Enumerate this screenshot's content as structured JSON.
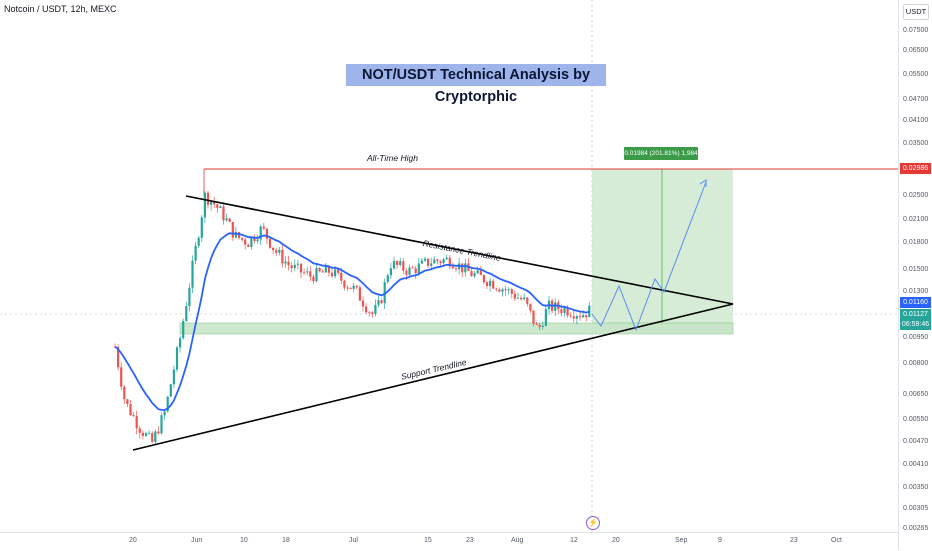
{
  "header": {
    "symbol_line": "Notcoin / USDT, 12h, MEXC",
    "title": "NOT/USDT Technical Analysis by Cryptorphic"
  },
  "price_axis": {
    "currency": "USDT",
    "ticks": [
      "0.07500",
      "0.06500",
      "0.05500",
      "0.04700",
      "0.04100",
      "0.03500",
      "0.02500",
      "0.02100",
      "0.01800",
      "0.01500",
      "0.01300",
      "0.00950",
      "0.00800",
      "0.00650",
      "0.00550",
      "0.00470",
      "0.00410",
      "0.00350",
      "0.00305",
      "0.00265"
    ],
    "tags": {
      "ath": "0.02986",
      "level1": "0.01160",
      "level2": "0.01127",
      "countdown": "06:59:46"
    }
  },
  "time_axis": {
    "ticks": [
      "20",
      "Jun",
      "10",
      "18",
      "Jul",
      "15",
      "23",
      "Aug",
      "12",
      "20",
      "Sep",
      "9",
      "23",
      "Oct"
    ]
  },
  "annotations": {
    "ath_label": "All-Time High",
    "resistance_label": "Resistance Trendline",
    "support_label": "Support Trendline",
    "target_label": "0.01984 (201.81%) 1,984"
  },
  "colors": {
    "up": "#26a69a",
    "down": "#ef5350",
    "ema": "#2962ff",
    "ath_line": "#e53935",
    "target_fill": "#c8e6c9",
    "zone_fill": "#c8e6c9",
    "projection": "#5b8def"
  },
  "chart_data": {
    "type": "candlestick",
    "series": [
      {
        "name": "",
        "approx_close_by_date": [
          {
            "date": "May 16",
            "close": 0.009
          },
          {
            "date": "May 20",
            "close": 0.0062
          },
          {
            "date": "May 25",
            "close": 0.0048
          },
          {
            "date": "May 30",
            "close": 0.008
          },
          {
            "date": "Jun 3",
            "close": 0.0235
          },
          {
            "date": "Jun 10",
            "close": 0.0205
          },
          {
            "date": "Jun 18",
            "close": 0.0195
          },
          {
            "date": "Jun 25",
            "close": 0.0152
          },
          {
            "date": "Jul 4",
            "close": 0.012
          },
          {
            "date": "Jul 7",
            "close": 0.015
          },
          {
            "date": "Jul 15",
            "close": 0.0165
          },
          {
            "date": "Jul 23",
            "close": 0.014
          },
          {
            "date": "Aug 1",
            "close": 0.0125
          },
          {
            "date": "Aug 5",
            "close": 0.0098
          },
          {
            "date": "Aug 12",
            "close": 0.0112
          },
          {
            "date": "Aug 15",
            "close": 0.0116
          }
        ]
      }
    ],
    "ath": 0.02986,
    "target_gain_percent": 201.81
  }
}
